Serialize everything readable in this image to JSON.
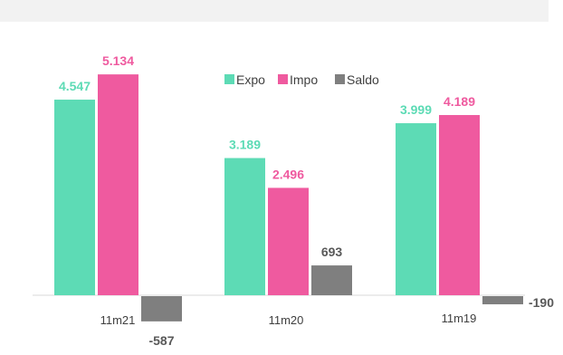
{
  "chart_data": {
    "type": "bar",
    "categories": [
      "11m21",
      "11m20",
      "11m19"
    ],
    "series": [
      {
        "name": "Expo",
        "color": "#5ddbb5",
        "values": [
          4547,
          3189,
          3999
        ],
        "labels": [
          "4.547",
          "3.189",
          "3.999"
        ]
      },
      {
        "name": "Impo",
        "color": "#ef5a9f",
        "values": [
          5134,
          2496,
          4189
        ],
        "labels": [
          "5.134",
          "2.496",
          "4.189"
        ]
      },
      {
        "name": "Saldo",
        "color": "#7f7f7f",
        "values": [
          -587,
          693,
          -190
        ],
        "labels": [
          "-587",
          "693",
          "-190"
        ]
      }
    ],
    "label_colors": [
      "#5ddbb5",
      "#ef5a9f",
      "#595959"
    ],
    "ylim": [
      -700,
      5500
    ],
    "legend": "top-center",
    "grid": false
  }
}
